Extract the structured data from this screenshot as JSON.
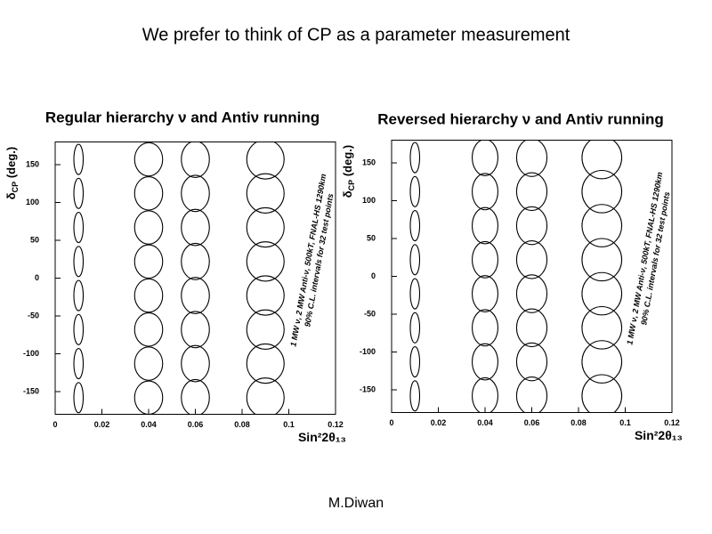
{
  "header": {
    "title": "We prefer to think of CP as a parameter measurement"
  },
  "footer": {
    "author": "M.Diwan"
  },
  "chart_data": [
    {
      "type": "ellipse",
      "title": "Regular hierarchy ν and Antiν running",
      "ylabel_parts": [
        "δ",
        "CP",
        " (deg.)"
      ],
      "xlabel": "Sin²2θ₁₃",
      "annotations": [
        "1 MW ν, 2 MW Anti-ν, 500kT, FNAL-HS 1290km",
        "90% C.L. intervals for 32 test points"
      ],
      "xlim": [
        0,
        0.12
      ],
      "ylim": [
        -180,
        180
      ],
      "xticks": [
        0,
        0.02,
        0.04,
        0.06,
        0.08,
        0.1,
        0.12
      ],
      "yticks": [
        -150,
        -100,
        -50,
        0,
        50,
        100,
        150
      ],
      "color": "#000000",
      "points": {
        "x": [
          0.01,
          0.01,
          0.01,
          0.01,
          0.01,
          0.01,
          0.01,
          0.01,
          0.04,
          0.04,
          0.04,
          0.04,
          0.04,
          0.04,
          0.04,
          0.04,
          0.06,
          0.06,
          0.06,
          0.06,
          0.06,
          0.06,
          0.06,
          0.06,
          0.09,
          0.09,
          0.09,
          0.09,
          0.09,
          0.09,
          0.09,
          0.09
        ],
        "y": [
          157,
          112,
          67,
          22,
          -23,
          -68,
          -113,
          -158,
          157,
          112,
          67,
          22,
          -23,
          -68,
          -113,
          -158,
          157,
          112,
          67,
          22,
          -23,
          -68,
          -113,
          -158,
          157,
          112,
          67,
          22,
          -23,
          -68,
          -113,
          -158
        ],
        "x_halfwidth": [
          0.002,
          0.002,
          0.002,
          0.002,
          0.002,
          0.002,
          0.002,
          0.002,
          0.006,
          0.006,
          0.006,
          0.006,
          0.006,
          0.006,
          0.006,
          0.006,
          0.006,
          0.006,
          0.006,
          0.006,
          0.006,
          0.006,
          0.006,
          0.006,
          0.008,
          0.008,
          0.008,
          0.008,
          0.008,
          0.008,
          0.008,
          0.008
        ],
        "y_halfwidth": [
          20,
          20,
          20,
          20,
          20,
          20,
          20,
          20,
          22,
          22,
          22,
          22,
          22,
          22,
          22,
          22,
          24,
          24,
          24,
          24,
          24,
          24,
          24,
          24,
          26,
          26,
          26,
          26,
          26,
          26,
          26,
          26
        ]
      }
    },
    {
      "type": "ellipse",
      "title": "Reversed hierarchy ν and Antiν running",
      "ylabel_parts": [
        "δ",
        "CP",
        " (deg.)"
      ],
      "xlabel": "Sin²2θ₁₃",
      "annotations": [
        "1 MW ν, 2 MW Anti-ν, 500kT, FNAL-HS 1290km",
        "90% C.L. intervals for 32 test points"
      ],
      "xlim": [
        0,
        0.12
      ],
      "ylim": [
        -180,
        180
      ],
      "xticks": [
        0,
        0.02,
        0.04,
        0.06,
        0.08,
        0.1,
        0.12
      ],
      "yticks": [
        -150,
        -100,
        -50,
        0,
        50,
        100,
        150
      ],
      "color": "#000000",
      "points": {
        "x": [
          0.01,
          0.01,
          0.01,
          0.01,
          0.01,
          0.01,
          0.01,
          0.01,
          0.04,
          0.04,
          0.04,
          0.04,
          0.04,
          0.04,
          0.04,
          0.04,
          0.06,
          0.06,
          0.06,
          0.06,
          0.06,
          0.06,
          0.06,
          0.06,
          0.09,
          0.09,
          0.09,
          0.09,
          0.09,
          0.09,
          0.09,
          0.09
        ],
        "y": [
          157,
          112,
          67,
          22,
          -23,
          -68,
          -113,
          -158,
          157,
          112,
          67,
          22,
          -23,
          -68,
          -113,
          -158,
          157,
          112,
          67,
          22,
          -23,
          -68,
          -113,
          -158,
          157,
          112,
          67,
          22,
          -23,
          -68,
          -113,
          -158
        ],
        "x_halfwidth": [
          0.002,
          0.002,
          0.002,
          0.002,
          0.002,
          0.002,
          0.002,
          0.002,
          0.0055,
          0.0055,
          0.0055,
          0.0055,
          0.0055,
          0.0055,
          0.0055,
          0.0055,
          0.0065,
          0.0065,
          0.0065,
          0.0065,
          0.0065,
          0.0065,
          0.0065,
          0.0065,
          0.0085,
          0.0085,
          0.0085,
          0.0085,
          0.0085,
          0.0085,
          0.0085,
          0.0085
        ],
        "y_halfwidth": [
          20,
          20,
          20,
          20,
          20,
          20,
          20,
          20,
          24,
          24,
          24,
          24,
          24,
          24,
          24,
          24,
          25,
          25,
          25,
          25,
          25,
          25,
          25,
          25,
          28,
          28,
          28,
          28,
          28,
          28,
          28,
          28
        ]
      }
    }
  ]
}
